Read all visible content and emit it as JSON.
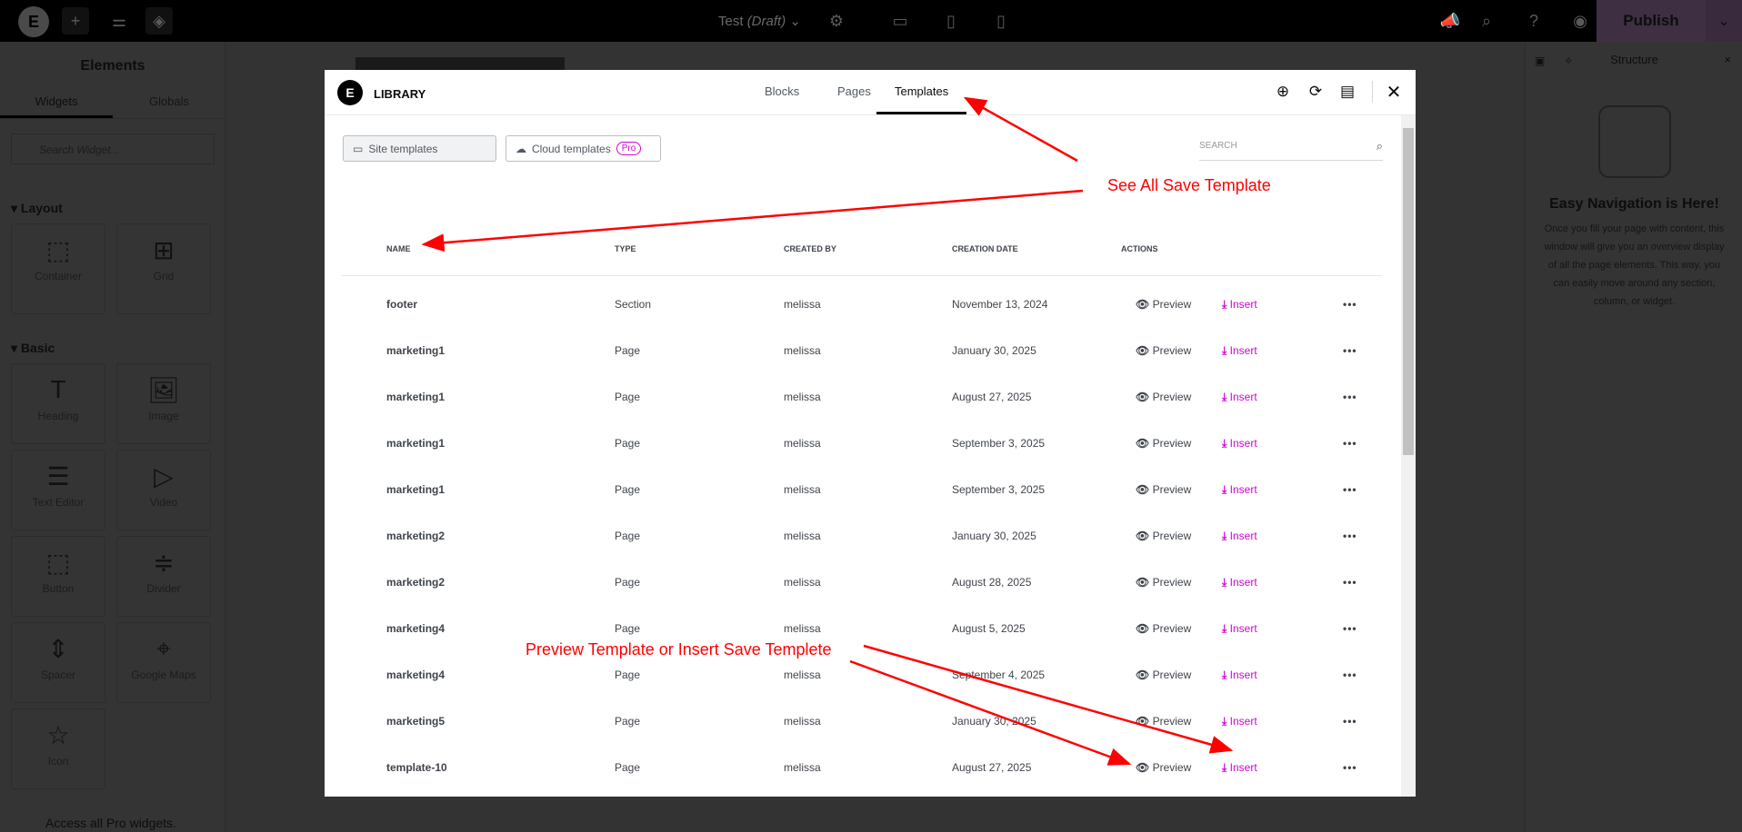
{
  "topbar": {
    "doc_title": "Test",
    "doc_status": "(Draft)",
    "publish": "Publish"
  },
  "left_panel": {
    "title": "Elements",
    "tabs": [
      "Widgets",
      "Globals"
    ],
    "search_placeholder": "Search Widget...",
    "sections": {
      "layout": "Layout",
      "basic": "Basic"
    },
    "layout_widgets": [
      {
        "label": "Container",
        "icon": "container-icon"
      },
      {
        "label": "Grid",
        "icon": "grid-icon"
      }
    ],
    "basic_widgets": [
      {
        "label": "Heading",
        "icon": "heading-icon"
      },
      {
        "label": "Image",
        "icon": "image-icon"
      },
      {
        "label": "Text Editor",
        "icon": "text-editor-icon"
      },
      {
        "label": "Video",
        "icon": "video-icon"
      },
      {
        "label": "Button",
        "icon": "button-icon"
      },
      {
        "label": "Divider",
        "icon": "divider-icon"
      },
      {
        "label": "Spacer",
        "icon": "spacer-icon"
      },
      {
        "label": "Google Maps",
        "icon": "map-icon"
      },
      {
        "label": "Icon",
        "icon": "star-icon"
      }
    ],
    "pro_text": "Access all Pro widgets."
  },
  "right_panel": {
    "title": "Structure",
    "heading": "Easy Navigation is Here!",
    "body": "Once you fill your page with content, this window will give you an overview display of all the page elements. This way, you can easily move around any section, column, or widget."
  },
  "modal": {
    "title": "LIBRARY",
    "tabs": [
      "Blocks",
      "Pages",
      "Templates"
    ],
    "active_tab": "Templates",
    "filters": {
      "site": "Site templates",
      "cloud": "Cloud templates",
      "pro_badge": "Pro"
    },
    "search_placeholder": "SEARCH",
    "columns": [
      "NAME",
      "TYPE",
      "CREATED BY",
      "CREATION DATE",
      "ACTIONS"
    ],
    "preview_label": "Preview",
    "insert_label": "Insert",
    "accent": "#d004d4",
    "rows": [
      {
        "name": "footer",
        "type": "Section",
        "author": "melissa",
        "date": "November 13, 2024"
      },
      {
        "name": "marketing1",
        "type": "Page",
        "author": "melissa",
        "date": "January 30, 2025"
      },
      {
        "name": "marketing1",
        "type": "Page",
        "author": "melissa",
        "date": "August 27, 2025"
      },
      {
        "name": "marketing1",
        "type": "Page",
        "author": "melissa",
        "date": "September 3, 2025"
      },
      {
        "name": "marketing1",
        "type": "Page",
        "author": "melissa",
        "date": "September 3, 2025"
      },
      {
        "name": "marketing2",
        "type": "Page",
        "author": "melissa",
        "date": "January 30, 2025"
      },
      {
        "name": "marketing2",
        "type": "Page",
        "author": "melissa",
        "date": "August 28, 2025"
      },
      {
        "name": "marketing4",
        "type": "Page",
        "author": "melissa",
        "date": "August 5, 2025"
      },
      {
        "name": "marketing4",
        "type": "Page",
        "author": "melissa",
        "date": "September 4, 2025"
      },
      {
        "name": "marketing5",
        "type": "Page",
        "author": "melissa",
        "date": "January 30, 2025"
      },
      {
        "name": "template-10",
        "type": "Page",
        "author": "melissa",
        "date": "August 27, 2025"
      }
    ]
  },
  "annotations": {
    "see_all": "See All Save Template",
    "preview_insert": "Preview Template or Insert Save Templete",
    "color": "#ff0000"
  }
}
